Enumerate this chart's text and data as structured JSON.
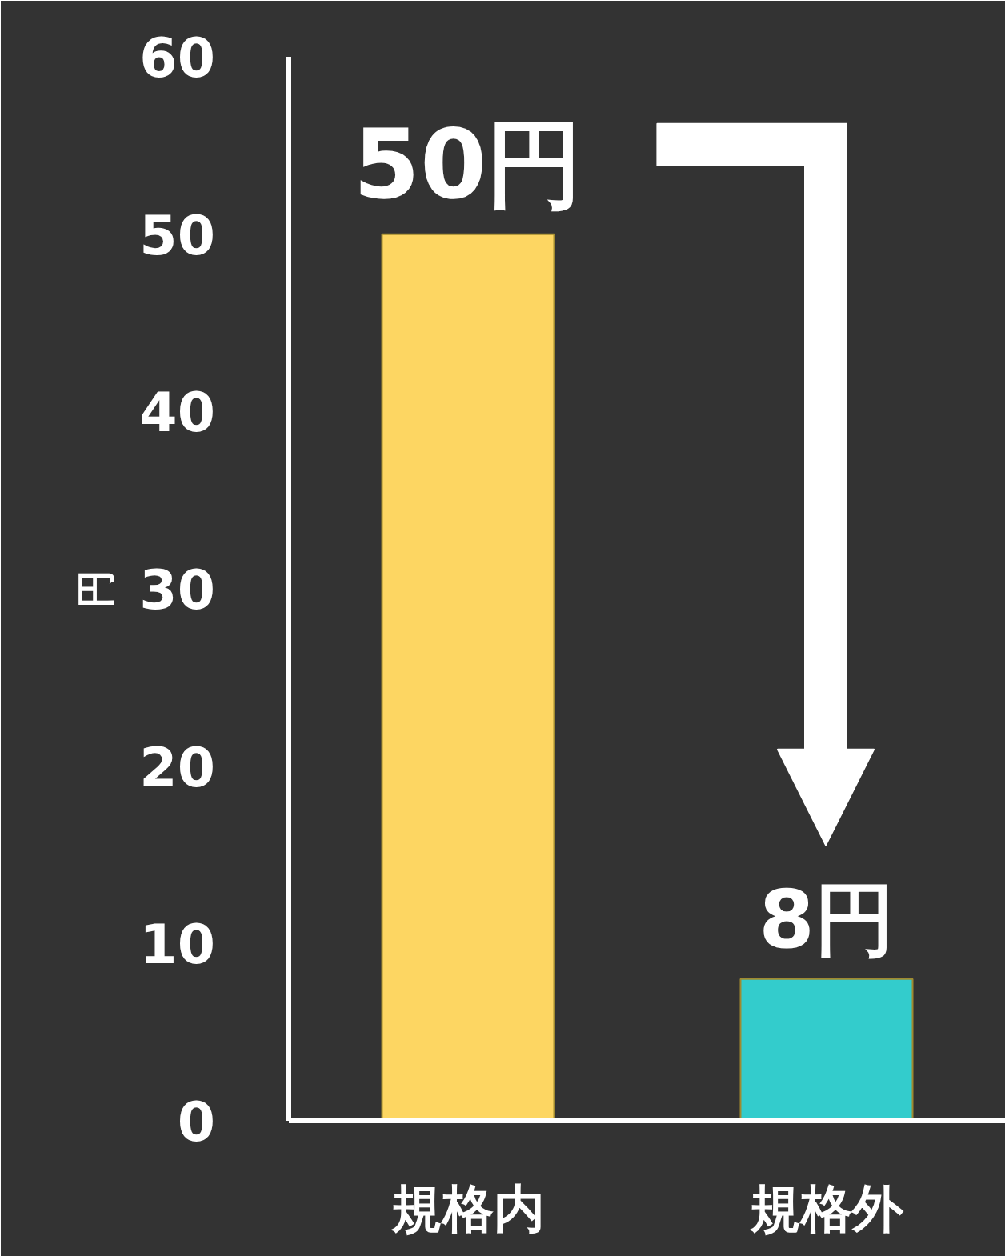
{
  "chart_data": {
    "type": "bar",
    "categories": [
      "規格内",
      "規格外"
    ],
    "values": [
      50,
      8
    ],
    "colors": [
      "#fdd662",
      "#33cccc"
    ],
    "ylabel": "円",
    "ylim": [
      0,
      60
    ],
    "yticks": [
      0,
      10,
      20,
      30,
      40,
      50,
      60
    ],
    "grid": false,
    "value_labels": [
      "50円",
      "8円"
    ]
  }
}
